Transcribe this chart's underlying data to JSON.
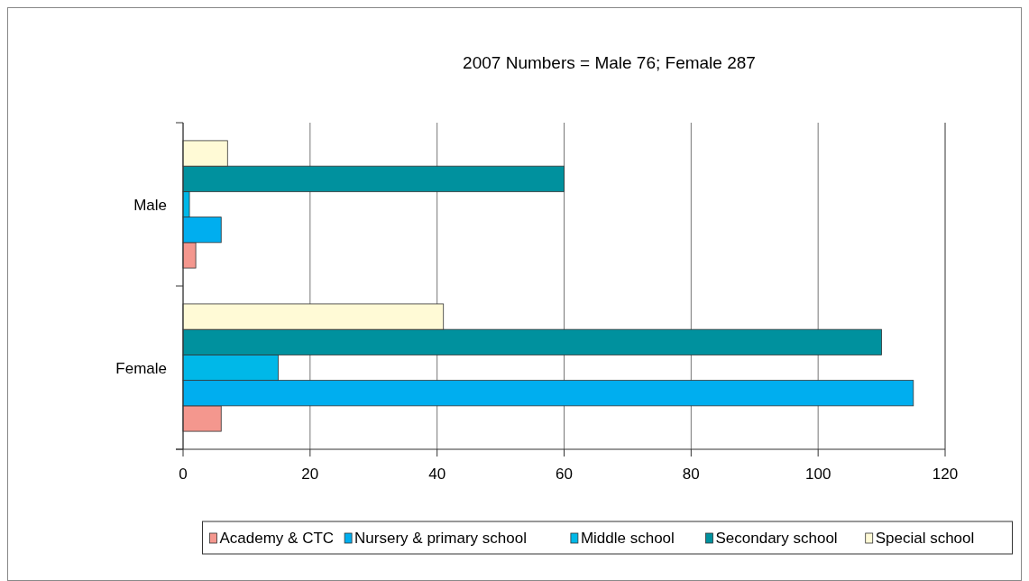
{
  "chart_data": {
    "type": "bar",
    "orientation": "horizontal",
    "title": "2007 Numbers = Male 76; Female 287",
    "categories": [
      "Male",
      "Female"
    ],
    "series": [
      {
        "name": "Academy & CTC",
        "color": "#f4978e",
        "values": [
          2,
          6
        ]
      },
      {
        "name": "Nursery & primary school",
        "color": "#00aeef",
        "values": [
          6,
          115
        ]
      },
      {
        "name": "Middle school",
        "color": "#00b8e8",
        "values": [
          1,
          15
        ]
      },
      {
        "name": "Secondary school",
        "color": "#00919e",
        "values": [
          60,
          110
        ]
      },
      {
        "name": "Special school",
        "color": "#fffad6",
        "values": [
          7,
          41
        ]
      }
    ],
    "xlim": [
      0,
      120
    ],
    "xticks": [
      0,
      20,
      40,
      60,
      80,
      100,
      120
    ],
    "grid": "x",
    "legend": "bottom"
  }
}
